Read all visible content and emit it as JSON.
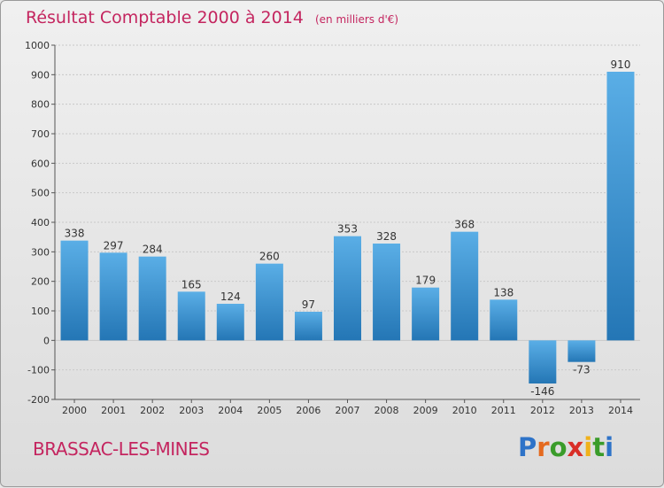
{
  "chart_data": {
    "type": "bar",
    "title": "Résultat Comptable 2000 à 2014",
    "subtitle": "(en milliers d'€)",
    "categories": [
      "2000",
      "2001",
      "2002",
      "2003",
      "2004",
      "2005",
      "2006",
      "2007",
      "2008",
      "2009",
      "2010",
      "2011",
      "2012",
      "2013",
      "2014"
    ],
    "values": [
      338,
      297,
      284,
      165,
      124,
      260,
      97,
      353,
      328,
      179,
      368,
      138,
      -146,
      -73,
      910
    ],
    "ylim": [
      -200,
      1000
    ],
    "yticks": [
      -200,
      -100,
      0,
      100,
      200,
      300,
      400,
      500,
      600,
      700,
      800,
      900,
      1000
    ],
    "grid": true,
    "bar_color_light": "#5aaee6",
    "bar_color_dark": "#2476b5"
  },
  "footer": {
    "commune": "BRASSAC-LES-MINES",
    "logo_letters": [
      "P",
      "r",
      "o",
      "x",
      "i",
      "t",
      "i"
    ]
  },
  "colors": {
    "title": "#c4255f",
    "grid": "#c8c8c8",
    "axis": "#555555"
  }
}
